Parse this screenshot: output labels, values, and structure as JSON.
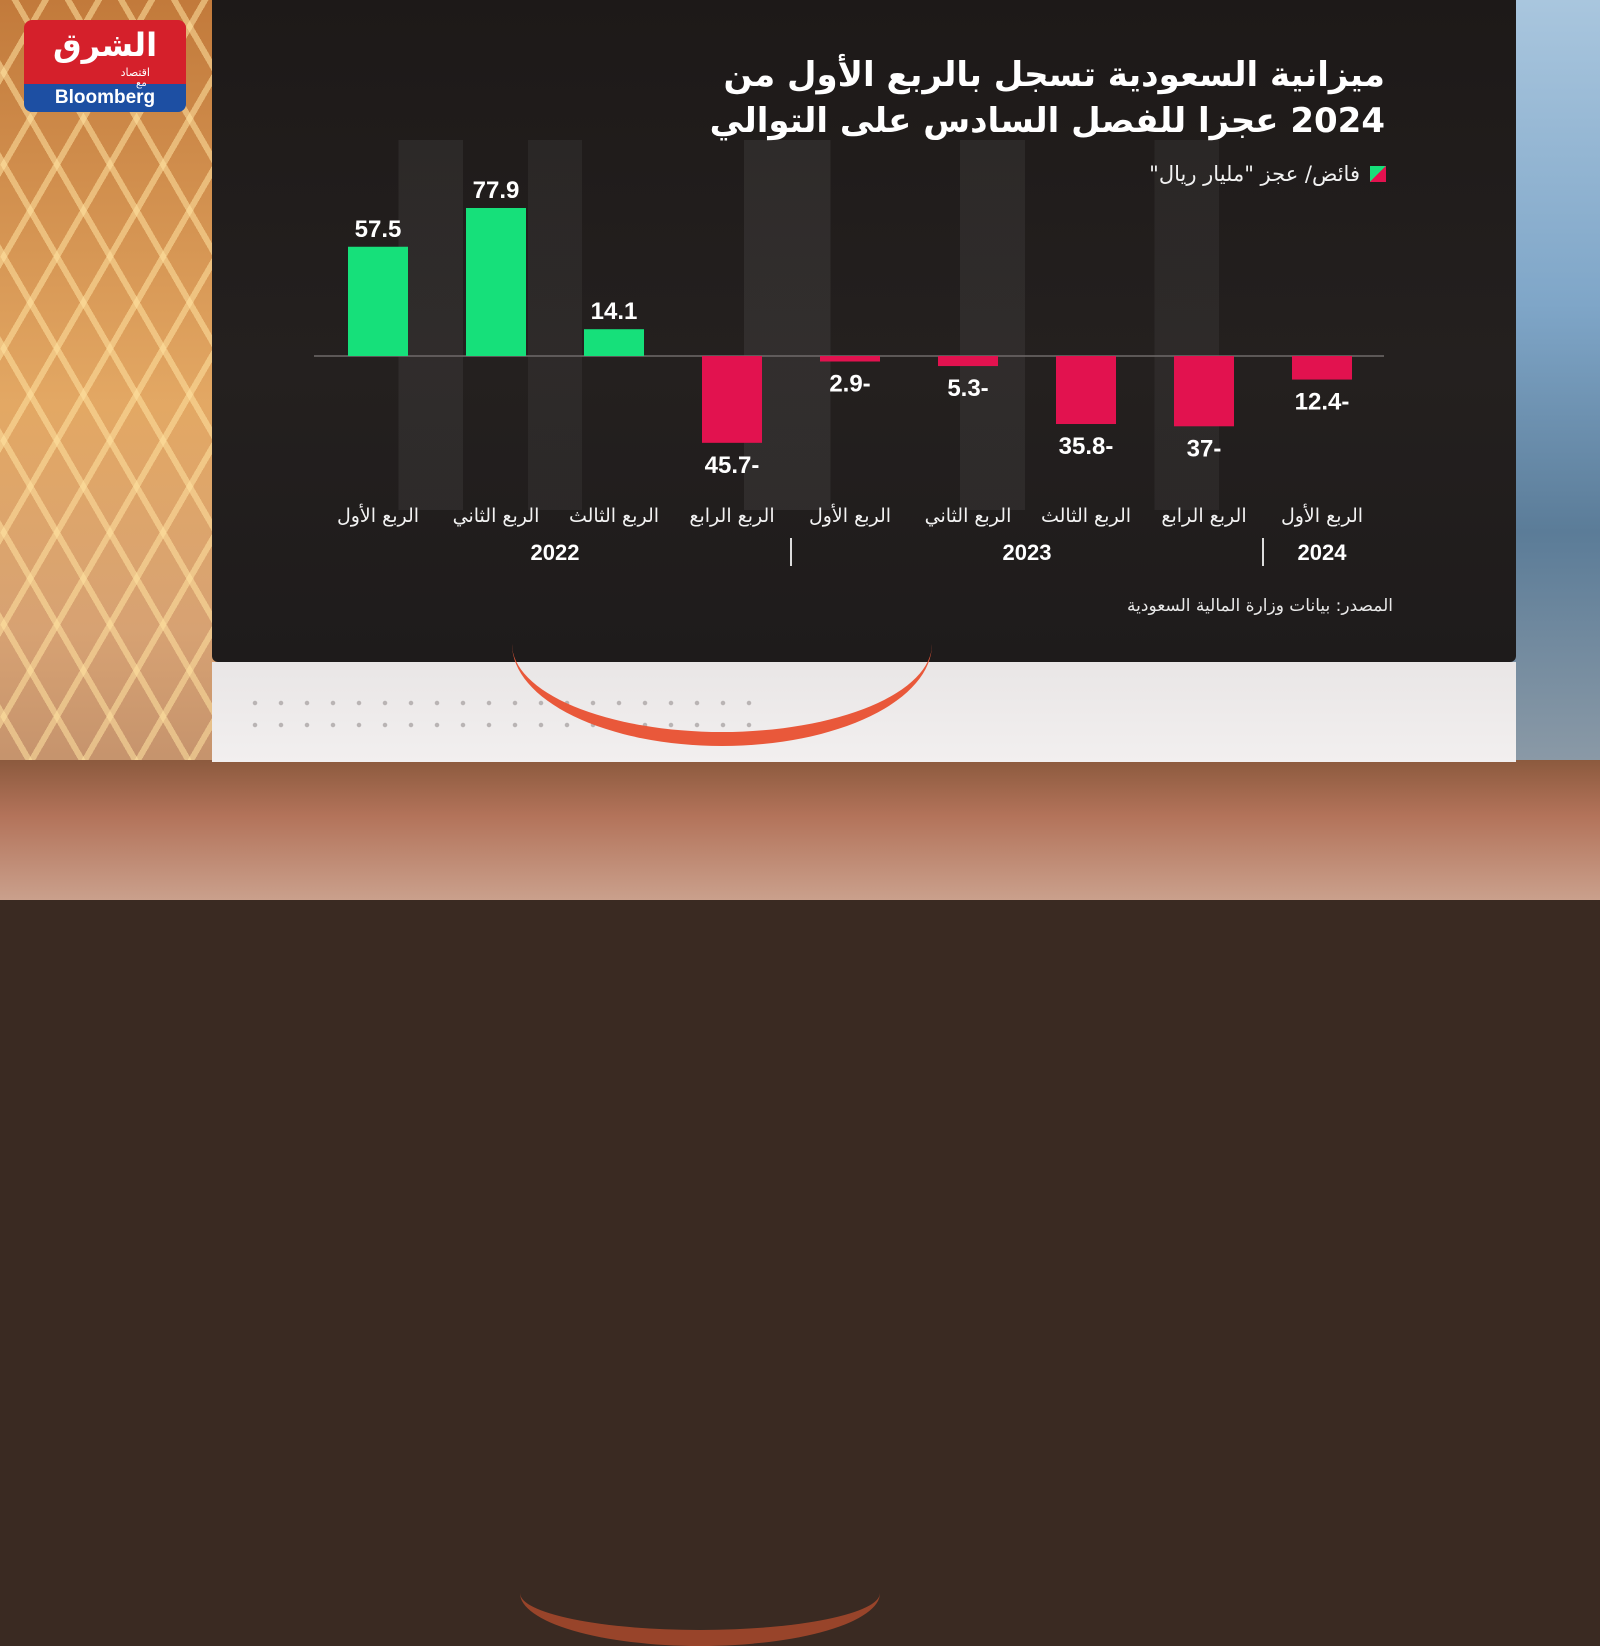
{
  "logo": {
    "name": "الشرق",
    "sub": "اقتصاد",
    "with": "مع",
    "partner": "Bloomberg"
  },
  "title_lines": [
    "ميزانية السعودية تسجل بالربع الأول من",
    "2024 عجزا للفصل السادس على التوالي"
  ],
  "legend_label": "فائض/ عجز \"مليار ريال\"",
  "source": "المصدر: بيانات وزارة المالية السعودية",
  "colors": {
    "surplus": "#16e07a",
    "deficit": "#e2124f",
    "screen_bg": "#1f1b1b",
    "text": "#ffffff",
    "logo_red": "#d5202b",
    "logo_blue": "#1d4fa3"
  },
  "chart_data": {
    "type": "bar",
    "title": "ميزانية السعودية تسجل بالربع الأول من 2024 عجزا للفصل السادس على التوالي",
    "series": [
      {
        "name": "فائض/ عجز \"مليار ريال\"",
        "values": [
          57.5,
          77.9,
          14.1,
          -45.7,
          -2.9,
          -5.3,
          -35.8,
          -37,
          -12.4
        ]
      }
    ],
    "categories": [
      "الربع الأول",
      "الربع الثاني",
      "الربع الثالث",
      "الربع الرابع",
      "الربع الأول",
      "الربع الثاني",
      "الربع الثالث",
      "الربع الرابع",
      "الربع الأول"
    ],
    "value_labels": [
      "57.5",
      "77.9",
      "14.1",
      "45.7-",
      "2.9-",
      "5.3-",
      "35.8-",
      "37-",
      "12.4-"
    ],
    "groups": [
      {
        "year": "2022",
        "quarters": 4
      },
      {
        "year": "2023",
        "quarters": 4
      },
      {
        "year": "2024",
        "quarters": 1
      }
    ],
    "ylim": [
      -50,
      80
    ],
    "grid": false,
    "legend": "top-right",
    "xlabel": "",
    "ylabel": ""
  }
}
